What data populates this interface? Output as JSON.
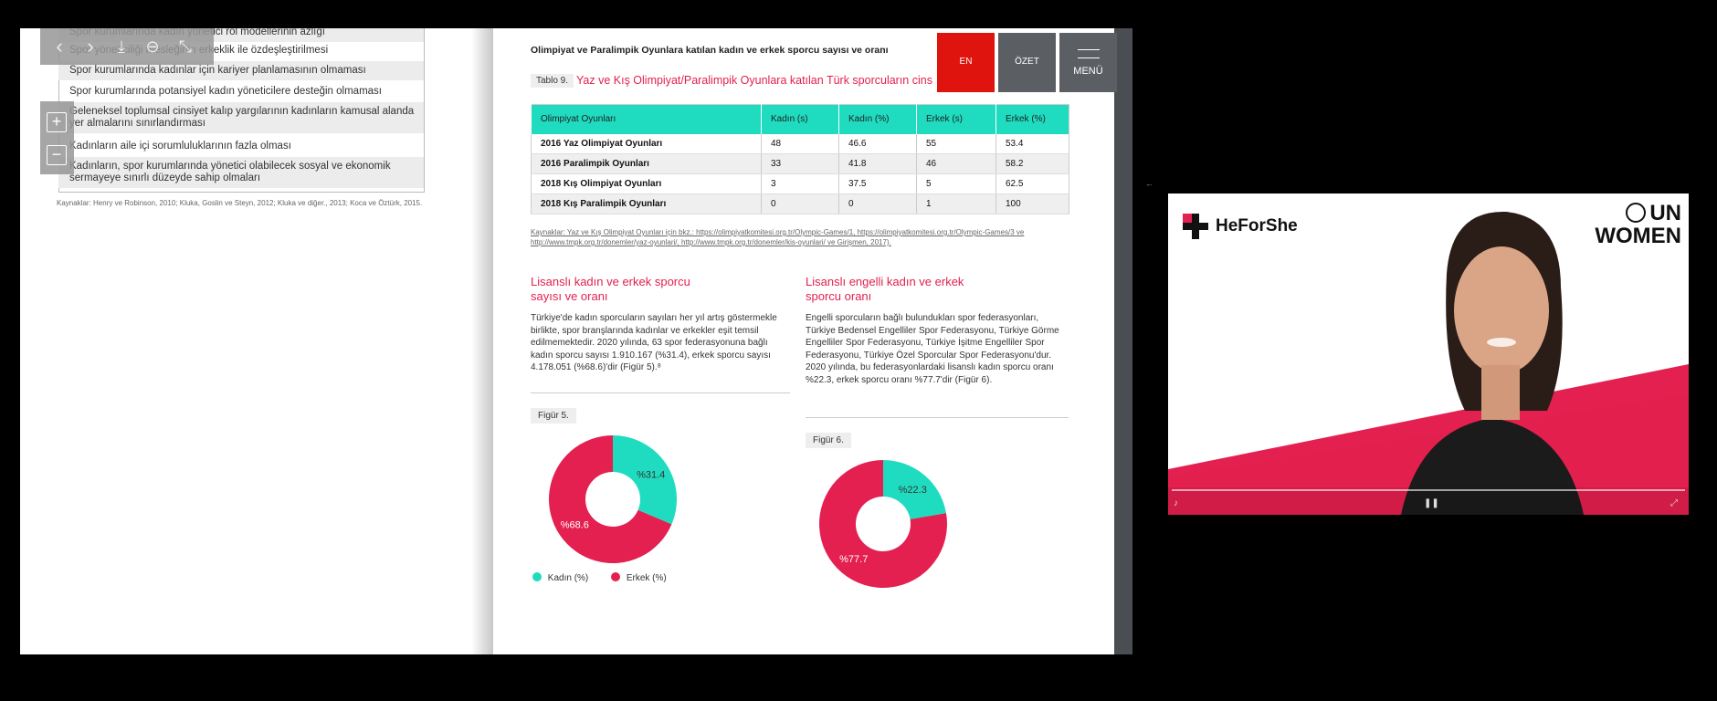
{
  "left_page": {
    "rows": [
      "Spor kurumlarında kadın yönetici rol modellerinin azlığı",
      "Spor yöneticiliği mesleğinin erkeklik ile özdeşleştirilmesi",
      "Spor kurumlarında kadınlar için kariyer planlamasının olmaması",
      "Spor kurumlarında potansiyel kadın yöneticilere desteğin olmaması",
      "Geleneksel toplumsal cinsiyet kalıp yargılarının kadınların kamusal alanda yer almalarını sınırlandırması",
      "Kadınların aile içi sorumluluklarının fazla olması",
      "Kadınların, spor kurumlarında yönetici olabilecek sosyal ve ekonomik sermayeye sınırlı düzeyde sahip olmaları"
    ],
    "source": "Kaynaklar: Henry ve Robinson, 2010; Kluka, Goslin ve Steyn, 2012; Kluka ve diğer., 2013; Koca ve Öztürk, 2015."
  },
  "right_page": {
    "header": "Olimpiyat ve Paralimpik Oyunlara katılan kadın ve erkek sporcu sayısı ve oranı",
    "table_tag": "Tablo 9.",
    "table_title": "Yaz ve Kış Olimpiyat/Paralimpik Oyunlara katılan Türk sporcuların cins",
    "columns": [
      "Olimpiyat Oyunları",
      "Kadın (s)",
      "Kadın (%)",
      "Erkek (s)",
      "Erkek (%)"
    ],
    "rows": [
      [
        "2016 Yaz Olimpiyat Oyunları",
        "48",
        "46.6",
        "55",
        "53.4"
      ],
      [
        "2016 Paralimpik Oyunları",
        "33",
        "41.8",
        "46",
        "58.2"
      ],
      [
        "2018 Kış Olimpiyat Oyunları",
        "3",
        "37.5",
        "5",
        "62.5"
      ],
      [
        "2018 Kış Paralimpik Oyunları",
        "0",
        "0",
        "1",
        "100"
      ]
    ],
    "table_source": "Kaynaklar: Yaz ve Kış Olimpiyat Oyunları için bkz.: https://olimpiyatkomitesi.org.tr/Olympic-Games/1, https://olimpiyatkomitesi.org.tr/Olympic-Games/3 ve http://www.tmpk.org.tr/donemler/yaz-oyunlari/, http://www.tmpk.org.tr/donemler/kis-oyunlari/ ve Girişmen, 2017).",
    "sec1_title": "Lisanslı kadın ve erkek sporcu sayısı ve oranı",
    "sec1_body": "Türkiye'de kadın sporcuların sayıları her yıl artış göstermekle birlikte, spor branşlarında kadınlar ve erkekler eşit temsil edilmemektedir. 2020 yılında, 63 spor federasyonuna bağlı kadın sporcu sayısı 1.910.167 (%31.4), erkek sporcu sayısı 4.178.051 (%68.6)'dir (Figür 5).⁸",
    "sec2_title": "Lisanslı engelli kadın ve erkek sporcu oranı",
    "sec2_body": "Engelli sporcuların bağlı bulundukları spor federasyonları, Türkiye Bedensel Engelliler Spor Federasyonu, Türkiye Görme Engelliler Spor Federasyonu, Türkiye İşitme Engelliler Spor Federasyonu, Türkiye Özel Sporcular Spor Federasyonu'dur. 2020 yılında, bu federasyonlardaki lisanslı kadın sporcu oranı %22.3, erkek sporcu oranı %77.7'dir (Figür 6).",
    "fig5_label": "Figür 5.",
    "fig6_label": "Figür 6.",
    "legend_women": "Kadın (%)",
    "legend_men": "Erkek (%)"
  },
  "chart_data": [
    {
      "type": "pie",
      "categories": [
        "Kadın (%)",
        "Erkek (%)"
      ],
      "values": [
        31.4,
        68.6
      ],
      "labels": [
        "%31.4",
        "%68.6"
      ],
      "title": "Figür 5."
    },
    {
      "type": "pie",
      "categories": [
        "Kadın (%)",
        "Erkek (%)"
      ],
      "values": [
        22.3,
        77.7
      ],
      "labels": [
        "%22.3",
        "%77.7"
      ],
      "title": "Figür 6."
    }
  ],
  "buttons": {
    "en": "EN",
    "ozet": "ÖZET",
    "menu": "MENÜ"
  },
  "video": {
    "brand_left": "HeForShe",
    "brand_right_1": "UN",
    "brand_right_2": "WOMEN"
  },
  "colors": {
    "teal": "#1fdcc0",
    "pink": "#e3204f",
    "red": "#e0140f",
    "gray_btn": "#5b5f64"
  }
}
